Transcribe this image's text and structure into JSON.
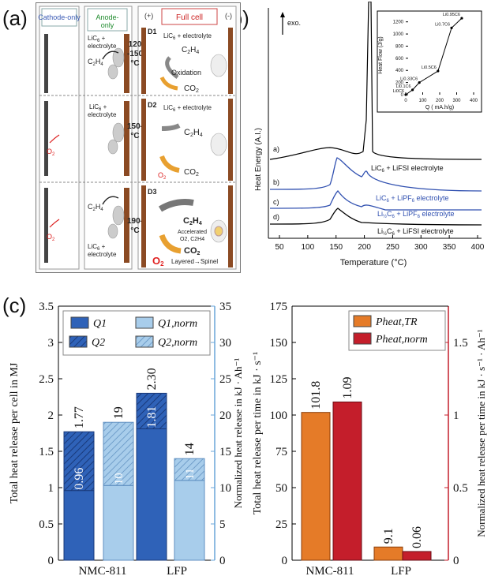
{
  "panel_labels": {
    "a": "(a)",
    "b": "(b)",
    "c": "(c)"
  },
  "panel_a": {
    "col_headers": [
      "Cathode-only",
      "Anode-only",
      "Full cell"
    ],
    "polarity": [
      "(+)",
      "(-)"
    ],
    "rows": [
      {
        "id": "D1",
        "temp": [
          "120",
          "-150",
          "°C"
        ],
        "anode_label": [
          "LiC",
          "6",
          " +",
          "electrolyte"
        ],
        "gas_anode": [
          "C",
          "2",
          "H",
          "4"
        ],
        "full_top": "LiC6 + electrolyte",
        "reaction": "Oxidation",
        "product": "CO2"
      },
      {
        "id": "D2",
        "temp": [
          "150-",
          "°C"
        ],
        "anode_label": [
          "LiC",
          "6",
          " +",
          "electrolyte"
        ],
        "full_top": "LiC6 + electrolyte",
        "cathode_gas": "O2",
        "full_gas_in": "O2",
        "product": "CO2"
      },
      {
        "id": "D3",
        "temp": [
          "190-",
          "°C"
        ],
        "anode_label": [
          "LiC",
          "6",
          " +",
          "electrolyte"
        ],
        "full_gas": "C2H4",
        "accel": [
          "Accelerated",
          "O2, C2H4"
        ],
        "product": "CO2",
        "bottom": "Layered→Spinel",
        "cathode_gas": "O2"
      }
    ]
  },
  "panel_b": {
    "exo": "exo.",
    "xlabel": "Temperature (°C)",
    "ylabel": "Heat Energy (A.I.)",
    "xticks": [
      "50",
      "100",
      "150",
      "200",
      "250",
      "300",
      "350",
      "400"
    ],
    "curves": [
      {
        "tag": "a)",
        "label": "LiC6 + LiFSI electrolyte"
      },
      {
        "tag": "b)",
        "label": "LiC6 + LiPF6 electrolyte"
      },
      {
        "tag": "c)",
        "label": "Li½C6 + LiPF6 electrolyte"
      },
      {
        "tag": "d)",
        "label": "Li½C6 + LiFSI electrolyte"
      }
    ],
    "inset": {
      "ylabel": "Heat Flow (J/g)",
      "xlabel": "Q ( mA.h/g)",
      "yticks": [
        "0",
        "200",
        "400",
        "600",
        "800",
        "1000",
        "1200"
      ],
      "xticks": [
        "0",
        "100",
        "200",
        "300",
        "400"
      ],
      "points": [
        {
          "q": 0,
          "h": 0,
          "label": "Li0C6"
        },
        {
          "q": 40,
          "h": 80,
          "label": "Li0.1C6"
        },
        {
          "q": 80,
          "h": 200,
          "label": "Li0.33C6"
        },
        {
          "q": 190,
          "h": 390,
          "label": "Li0.5C6"
        },
        {
          "q": 270,
          "h": 1100,
          "label": "Li0.7C6"
        },
        {
          "q": 330,
          "h": 1260,
          "label": "Li0.95C6"
        }
      ]
    }
  },
  "chart_data": [
    {
      "type": "bar",
      "categories": [
        "NMC-811",
        "LFP"
      ],
      "ylabel": "Total heat release per cell in MJ",
      "y2label": "Normalized heat release in kJ · Ah⁻¹",
      "ylim": [
        0,
        3.5
      ],
      "y2lim": [
        0,
        35
      ],
      "yticks": [
        "0",
        "0.5",
        "1",
        "1.5",
        "2",
        "2.5",
        "3",
        "3.5"
      ],
      "y2ticks": [
        "0",
        "5",
        "10",
        "15",
        "20",
        "25",
        "30",
        "35"
      ],
      "legend": [
        "Q1",
        "Q1,norm",
        "Q2",
        "Q2,norm"
      ],
      "series": [
        {
          "name": "Q1",
          "values": [
            0.96,
            1.81
          ],
          "axis": "left",
          "labels": [
            "0.96",
            "1.81"
          ]
        },
        {
          "name": "Q2",
          "values": [
            0.81,
            0.49
          ],
          "axis": "left"
        },
        {
          "name": "Q1,norm",
          "values": [
            10.3,
            11.0
          ],
          "axis": "right",
          "labels": [
            "10",
            "11"
          ]
        },
        {
          "name": "Q2,norm",
          "values": [
            8.7,
            3.0
          ],
          "axis": "right"
        }
      ],
      "totals": {
        "left": [
          "1.77",
          "2.30"
        ],
        "right": [
          "19",
          "14"
        ]
      }
    },
    {
      "type": "bar",
      "categories": [
        "NMC-811",
        "LFP"
      ],
      "ylabel": "Total heat release per time in kJ · s⁻¹",
      "y2label": "Normalized heat release per time in kJ · s⁻¹ · Ah⁻¹",
      "ylim": [
        0,
        175
      ],
      "y2lim": [
        0,
        1.75
      ],
      "yticks": [
        "0",
        "25",
        "50",
        "75",
        "100",
        "125",
        "150",
        "175"
      ],
      "y2ticks": [
        "0",
        "0.5",
        "1",
        "1.5"
      ],
      "legend": [
        "Pheat,TR",
        "Pheat,norm"
      ],
      "series": [
        {
          "name": "Pheat,TR",
          "values": [
            101.8,
            9.1
          ],
          "axis": "left",
          "labels": [
            "101.8",
            "9.1"
          ]
        },
        {
          "name": "Pheat,norm",
          "values": [
            1.09,
            0.06
          ],
          "axis": "right",
          "labels": [
            "1.09",
            "0.06"
          ]
        }
      ]
    }
  ],
  "colors": {
    "dark_blue": "#2f62b8",
    "light_blue": "#a8cdeb",
    "orange": "#e57b28",
    "red": "#c41e2b",
    "curve_blue": "#3050b0"
  }
}
